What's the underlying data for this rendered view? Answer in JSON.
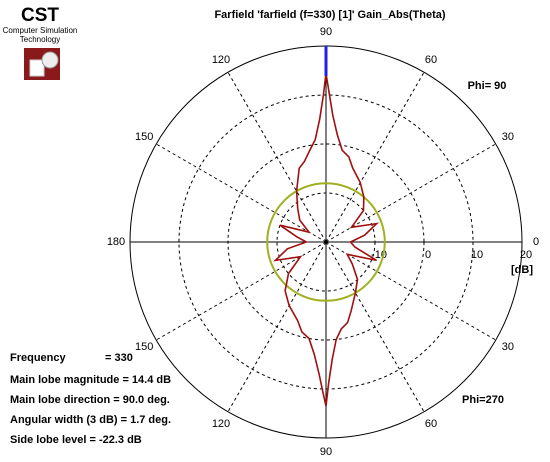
{
  "header": {
    "logo": "CST",
    "logo_sub1": "Computer Simulation",
    "logo_sub2": "Technology"
  },
  "chart_data": {
    "type": "polar",
    "title": "Farfield 'farfield (f=330) [1]' Gain_Abs(Theta)",
    "rlim": [
      -20,
      20
    ],
    "rticks": [
      -10,
      0,
      10,
      20
    ],
    "r_unit": "[dB]",
    "angle_ticks": [
      {
        "value": 0,
        "label": "0"
      },
      {
        "value": 30,
        "label": "30"
      },
      {
        "value": 60,
        "label": "60"
      },
      {
        "value": 90,
        "label": "90"
      },
      {
        "value": 120,
        "label": "120"
      },
      {
        "value": 150,
        "label": "150"
      },
      {
        "value": 180,
        "label": "180"
      },
      {
        "value": 210,
        "label": "150"
      },
      {
        "value": 240,
        "label": "120"
      },
      {
        "value": 270,
        "label": "90"
      },
      {
        "value": 300,
        "label": "60"
      },
      {
        "value": 330,
        "label": "30"
      }
    ],
    "phi_labels": [
      "Phi= 90",
      "Phi=270"
    ],
    "theta": [
      0,
      10,
      20,
      30,
      40,
      50,
      60,
      70,
      75,
      80,
      84,
      87,
      89,
      90,
      91,
      93,
      96,
      100,
      105,
      110,
      120,
      130,
      140,
      150,
      160,
      170,
      180,
      190,
      200,
      210,
      220,
      230,
      240,
      250,
      255,
      260,
      264,
      267,
      269,
      270,
      271,
      273,
      276,
      280,
      285,
      290,
      300,
      310,
      320,
      330,
      340,
      350
    ],
    "values": [
      -15,
      -12,
      -9,
      -14,
      -10,
      -8,
      -6,
      -4,
      -2,
      -1,
      2,
      6,
      11,
      14.4,
      10,
      5,
      1,
      -1,
      -3,
      -4,
      -8,
      -11,
      -13,
      -16,
      -10,
      -14,
      -16,
      -12,
      -9,
      -14,
      -10,
      -7,
      -5,
      -3,
      -1,
      0,
      3,
      7,
      11,
      13.5,
      9,
      4,
      0,
      -2,
      -3,
      -5,
      -8,
      -10,
      -13,
      -15,
      -9,
      -14
    ],
    "color": "#a01010",
    "main_lobe_angle": 90,
    "main_lobe_color": "#2020e0",
    "sidelobe_circle": -8,
    "sidelobe_color": "#a0b020"
  },
  "info": [
    "Frequency",
    "= 330",
    "Main lobe magnitude  =  14.4 dB",
    "Main lobe direction  =  90.0 deg.",
    "Angular width (3 dB)  =  1.7 deg.",
    "Side lobe level = -22.3 dB"
  ]
}
